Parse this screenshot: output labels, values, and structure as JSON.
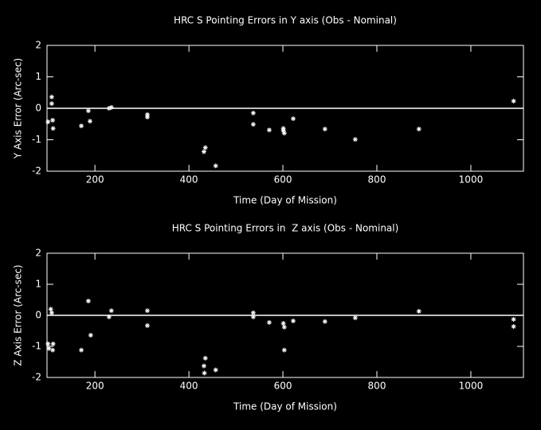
{
  "chart_data": [
    {
      "type": "scatter",
      "title": "HRC S Pointing Errors in Y axis (Obs - Nominal)",
      "xlabel": "Time (Day of Mission)",
      "ylabel": "Y Axis Error (Arc-sec)",
      "x": [
        100,
        108,
        108,
        110,
        111,
        171,
        186,
        189.5,
        230,
        235,
        311.6,
        311.6,
        432,
        435,
        457,
        537,
        537,
        571,
        601,
        601,
        603,
        622,
        689.5,
        754,
        889.5,
        1091
      ],
      "values": [
        -0.43,
        0.36,
        0.15,
        -0.38,
        -0.64,
        -0.56,
        -0.08,
        -0.41,
        0,
        0.03,
        -0.28,
        -0.2,
        -1.38,
        -1.25,
        -1.83,
        -0.15,
        -0.51,
        -0.69,
        -0.64,
        -0.71,
        -0.79,
        -0.33,
        -0.66,
        -0.99,
        -0.66,
        0.23
      ],
      "color": "#ffffff",
      "hline": 0,
      "xlim": [
        98,
        1112
      ],
      "ylim": [
        -2,
        2
      ],
      "xticks": [
        200,
        400,
        600,
        800,
        1000
      ],
      "yticks": [
        -2,
        -1,
        0,
        1,
        2
      ]
    },
    {
      "type": "scatter",
      "title": "HRC S Pointing Errors in  Z axis (Obs - Nominal)",
      "xlabel": "Time (Day of Mission)",
      "ylabel": "Z Axis Error (Arc-sec)",
      "x": [
        100,
        102,
        106,
        108,
        110,
        111,
        171,
        186,
        191,
        230,
        235,
        311.6,
        311.6,
        432,
        435,
        433,
        457,
        537,
        537,
        571,
        601,
        603,
        603,
        622,
        689.5,
        754,
        889.5,
        1091,
        1091
      ],
      "values": [
        -0.92,
        -1.07,
        0.2,
        0.08,
        -1.12,
        -0.92,
        -1.12,
        0.46,
        -0.64,
        -0.05,
        0.15,
        0.15,
        -0.33,
        -1.63,
        -1.38,
        -1.86,
        -1.76,
        0.08,
        -0.05,
        -0.23,
        -0.26,
        -0.38,
        -1.12,
        -0.18,
        -0.2,
        -0.08,
        0.13,
        -0.13,
        -0.36
      ],
      "color": "#ffffff",
      "hline": 0,
      "xlim": [
        98,
        1112
      ],
      "ylim": [
        -2,
        2
      ],
      "xticks": [
        200,
        400,
        600,
        800,
        1000
      ],
      "yticks": [
        -2,
        -1,
        0,
        1,
        2
      ]
    }
  ]
}
